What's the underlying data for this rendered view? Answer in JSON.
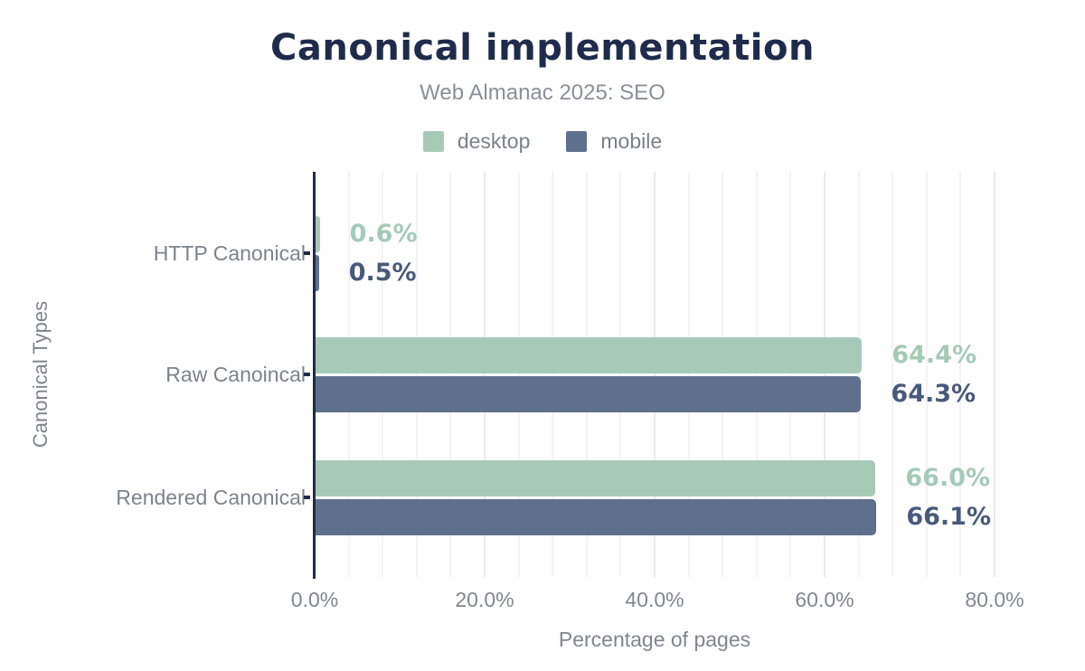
{
  "chart_data": {
    "type": "bar",
    "orientation": "horizontal",
    "title": "Canonical implementation",
    "subtitle": "Web Almanac 2025: SEO",
    "categories": [
      "HTTP Canonical",
      "Raw Canoincal",
      "Rendered Canonical"
    ],
    "series": [
      {
        "name": "desktop",
        "color": "#a7cab8",
        "label_color": "#a5cab6",
        "values": [
          0.6,
          64.4,
          66.0
        ],
        "labels": [
          "0.6%",
          "64.4%",
          "66.0%"
        ]
      },
      {
        "name": "mobile",
        "color": "#5f708c",
        "label_color": "#48597a",
        "values": [
          0.5,
          64.3,
          66.1
        ],
        "labels": [
          "0.5%",
          "64.3%",
          "66.1%"
        ]
      }
    ],
    "xlabel": "Percentage of pages",
    "ylabel": "Canonical Types",
    "xlim": [
      0,
      80
    ],
    "x_ticks": [
      {
        "label": "0.0%",
        "value": 0
      },
      {
        "label": "20.0%",
        "value": 20
      },
      {
        "label": "40.0%",
        "value": 40
      },
      {
        "label": "60.0%",
        "value": 60
      },
      {
        "label": "80.0%",
        "value": 80
      }
    ],
    "grid": {
      "minor_step": 4,
      "major_step": 20,
      "enabled": true
    },
    "legend_position": "top",
    "colors": {
      "title": "#1e2b4b",
      "subtitle": "#8a9097",
      "axis_line": "#1f2c49",
      "axis_text": "#7d838b",
      "minor_gridline": "#f3f3f5",
      "major_gridline": "#e9eaed"
    }
  }
}
